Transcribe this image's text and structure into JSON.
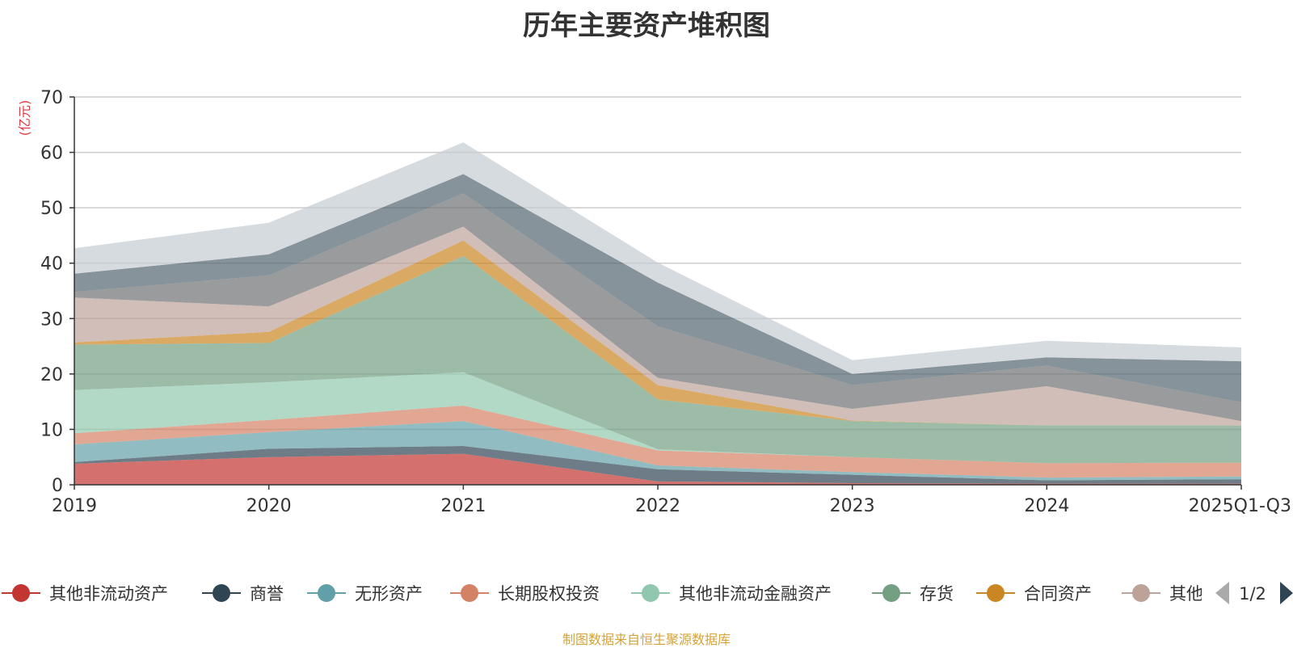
{
  "chart_data": {
    "type": "area",
    "stacked": true,
    "title": "历年主要资产堆积图",
    "ylabel": "(亿元)",
    "xlabel": "",
    "categories": [
      "2019",
      "2020",
      "2021",
      "2022",
      "2023",
      "2024",
      "2025Q1-Q3"
    ],
    "yticks": [
      0,
      10,
      20,
      30,
      40,
      50,
      60,
      70
    ],
    "ylim": [
      0,
      70
    ],
    "grid": true,
    "series": [
      {
        "name": "其他非流动资产",
        "color": "#c23531",
        "values": [
          3.8,
          5.0,
          5.6,
          0.6,
          0.3,
          0.2,
          0.2
        ]
      },
      {
        "name": "商誉",
        "color": "#2f4554",
        "values": [
          0.3,
          1.5,
          1.4,
          2.2,
          1.5,
          0.6,
          0.8
        ]
      },
      {
        "name": "无形资产",
        "color": "#61a0a8",
        "values": [
          3.2,
          3.0,
          4.5,
          0.7,
          0.5,
          0.5,
          0.5
        ]
      },
      {
        "name": "长期股权投资",
        "color": "#d48265",
        "values": [
          2.0,
          2.2,
          2.8,
          2.7,
          2.7,
          2.6,
          2.5
        ]
      },
      {
        "name": "其他非流动金融资产",
        "color": "#91c7ae",
        "values": [
          7.8,
          6.8,
          6.0,
          0.2,
          0.0,
          0.0,
          0.0
        ]
      },
      {
        "name": "存货",
        "color": "#749f83",
        "values": [
          8.2,
          7.1,
          21.0,
          9.0,
          6.5,
          6.8,
          6.7
        ]
      },
      {
        "name": "合同资产",
        "color": "#ca8622",
        "values": [
          0.4,
          2.0,
          2.8,
          2.6,
          0.1,
          0.0,
          0.0
        ]
      },
      {
        "name": "其他",
        "color": "#bda29a",
        "values": [
          8.1,
          4.6,
          2.5,
          1.3,
          2.1,
          7.1,
          0.8
        ]
      },
      {
        "name": "",
        "color": "#6e7074",
        "values": [
          1.0,
          5.6,
          6.0,
          9.3,
          4.3,
          3.7,
          3.4
        ]
      },
      {
        "name": "",
        "color": "#546570",
        "values": [
          3.3,
          3.8,
          3.5,
          7.9,
          2.0,
          1.5,
          7.4
        ]
      },
      {
        "name": "",
        "color": "#c4ccd3",
        "values": [
          4.6,
          5.7,
          5.7,
          3.6,
          2.5,
          3.0,
          2.5
        ]
      }
    ],
    "legend_position": "bottom",
    "legend_page": "1/2",
    "legend_visible_last_label": "其他"
  },
  "footer": {
    "source": "制图数据来自恒生聚源数据库"
  }
}
